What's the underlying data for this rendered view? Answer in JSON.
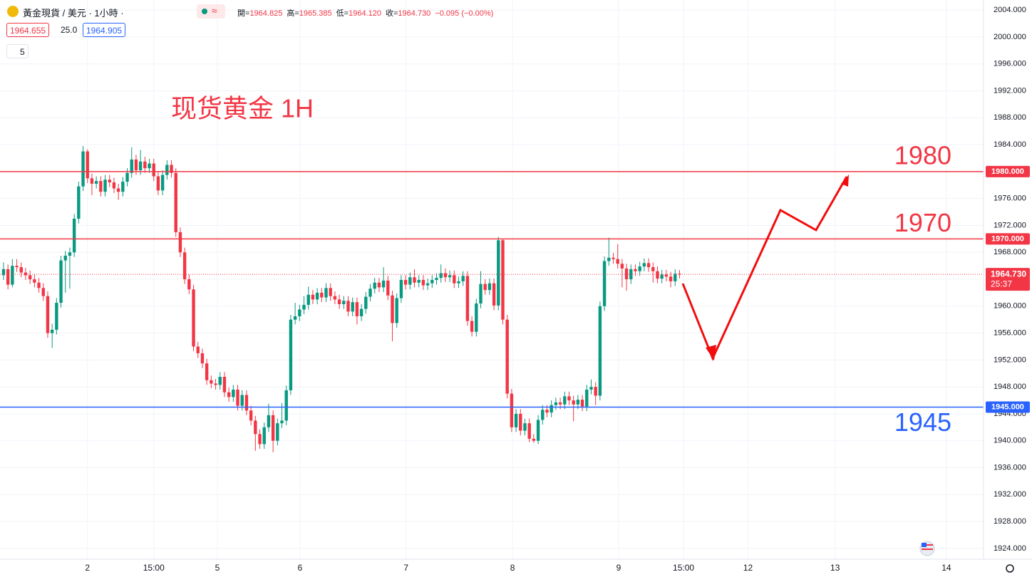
{
  "header": {
    "symbol": "黃金現貨 / 美元 · 1小時 ·",
    "ohlc": [
      {
        "key": "開=",
        "value": "1964.825"
      },
      {
        "key": "高=",
        "value": "1965.385"
      },
      {
        "key": "低=",
        "value": "1964.120"
      },
      {
        "key": "收=",
        "value": "1964.730"
      }
    ],
    "change": "−0.095 (−0.00%)",
    "bid": "1964.655",
    "spread": "25.0",
    "ask": "1964.905",
    "indicators": "5"
  },
  "chart_data": {
    "type": "candlestick",
    "title": "现货黄金 1H",
    "up_color": "#089981",
    "down_color": "#f23645",
    "open": [
      1964.6,
      1965.5,
      1963.2,
      1966,
      1965.8,
      1965,
      1964.6,
      1964,
      1963.5,
      1962.7,
      1961.5,
      1956,
      1956.5,
      1960.5,
      1966.8,
      1967.5,
      1968,
      1973,
      1977.8,
      1983,
      1979,
      1978.2,
      1978.6,
      1977,
      1978.8,
      1978.4,
      1977.5,
      1977,
      1978.5,
      1979.8,
      1981.8,
      1980.2,
      1981.5,
      1980.5,
      1981.2,
      1979.3,
      1977.2,
      1979.5,
      1981,
      1979.8,
      1971,
      1968,
      1964,
      1962.5,
      1954,
      1953,
      1951.5,
      1949,
      1948.5,
      1948.3,
      1949.5,
      1947.2,
      1946.5,
      1947.6,
      1945.2,
      1946.8,
      1944.5,
      1943,
      1941,
      1939.5,
      1942,
      1943.8,
      1940,
      1942.6,
      1943,
      1947.5,
      1958,
      1958.5,
      1959.5,
      1960.2,
      1961.7,
      1961,
      1962,
      1961.3,
      1962.7,
      1961.5,
      1961,
      1960.3,
      1960.8,
      1959.2,
      1960.6,
      1958.5,
      1959.6,
      1961.4,
      1962.6,
      1963.5,
      1962.8,
      1963.8,
      1961.6,
      1957.5,
      1961.2,
      1963.9,
      1963.2,
      1964.3,
      1963.5,
      1963.9,
      1963.1,
      1963.4,
      1963.9,
      1964.2,
      1964.9,
      1964.3,
      1964.6,
      1963.4,
      1963.7,
      1964.5,
      1957.8,
      1956.2,
      1960.4,
      1963.3,
      1962.4,
      1963.4,
      1960.1,
      1969.8,
      1958,
      1947,
      1942,
      1944,
      1941.5,
      1942.6,
      1940.3,
      1940,
      1943.1,
      1944.6,
      1944.2,
      1945.3,
      1945.7,
      1945.4,
      1946.6,
      1946,
      1945.4,
      1946.1,
      1945.1,
      1947.6,
      1948,
      1946.7,
      1960,
      1966.7,
      1967.2,
      1967,
      1966.3,
      1965.6,
      1964,
      1965.5,
      1965.2,
      1965.9,
      1966.4,
      1965.8,
      1965.2,
      1964.1,
      1964.7,
      1964.4,
      1963.7,
      1964.825
    ],
    "high": [
      1966.5,
      1966.2,
      1967,
      1967,
      1966.5,
      1965.7,
      1965.3,
      1964.7,
      1964.2,
      1963.4,
      1962.2,
      1957.4,
      1961.2,
      1967.5,
      1968.2,
      1968.7,
      1973.7,
      1978.5,
      1983.8,
      1983.3,
      1979.7,
      1979.3,
      1979.3,
      1979.5,
      1979.5,
      1979.1,
      1978.2,
      1979.2,
      1980.5,
      1983.6,
      1982.5,
      1983.2,
      1982.2,
      1981.9,
      1981.9,
      1980,
      1980.2,
      1981.7,
      1981.7,
      1980.5,
      1971.7,
      1968.7,
      1964.7,
      1963.2,
      1954.7,
      1953.7,
      1952.2,
      1949.7,
      1949.2,
      1950.2,
      1950.2,
      1947.9,
      1948.3,
      1948.3,
      1947.5,
      1947.5,
      1945.2,
      1943.7,
      1941.7,
      1942.7,
      1945.5,
      1944.5,
      1943.3,
      1945.6,
      1948.2,
      1958.7,
      1960.5,
      1960.2,
      1961.5,
      1962.9,
      1962.4,
      1962.7,
      1962.7,
      1963.4,
      1963.4,
      1962.2,
      1961.7,
      1961.5,
      1961.5,
      1961.3,
      1961.3,
      1960.3,
      1962.1,
      1963.3,
      1964.2,
      1964.2,
      1965.8,
      1964.5,
      1962.3,
      1961.9,
      1964.6,
      1964.6,
      1965,
      1965.5,
      1964.6,
      1964.6,
      1964.1,
      1964.6,
      1964.9,
      1966.2,
      1965.6,
      1965.3,
      1965.3,
      1964.4,
      1965.2,
      1965.2,
      1958.5,
      1961.1,
      1965.2,
      1964,
      1964.1,
      1964.1,
      1970.3,
      1970,
      1958.7,
      1947.7,
      1944.7,
      1944.7,
      1943.3,
      1943.3,
      1941,
      1943.8,
      1945.3,
      1945.3,
      1946,
      1946.4,
      1946.4,
      1947.3,
      1947.3,
      1946.7,
      1946.8,
      1946.8,
      1948.3,
      1949.1,
      1948.7,
      1960.7,
      1967.4,
      1970.2,
      1967.9,
      1969.2,
      1967,
      1966.3,
      1966.2,
      1966.2,
      1966.6,
      1967.1,
      1967.1,
      1966.5,
      1965.9,
      1965.4,
      1965.4,
      1965.1,
      1965.5,
      1965.385
    ],
    "low": [
      1963.9,
      1962.5,
      1962.8,
      1965.1,
      1964.3,
      1963.9,
      1963.3,
      1962.8,
      1962,
      1960.8,
      1955.3,
      1953.8,
      1955.8,
      1959.8,
      1962,
      1962.6,
      1967.3,
      1972.3,
      1977.1,
      1978.3,
      1976.5,
      1977.5,
      1976.3,
      1976.3,
      1977.7,
      1976.8,
      1975.8,
      1976.3,
      1977.8,
      1979.1,
      1979.5,
      1979.5,
      1979.8,
      1979.8,
      1978.6,
      1976.5,
      1976.5,
      1978.8,
      1979.1,
      1970.3,
      1967.3,
      1963.3,
      1961.8,
      1953.3,
      1952.3,
      1950.8,
      1948.3,
      1947.8,
      1947.6,
      1947.6,
      1946.5,
      1945.8,
      1945.8,
      1944.5,
      1944.5,
      1943.8,
      1942.3,
      1938.5,
      1938.8,
      1938.8,
      1941.3,
      1938.3,
      1939.3,
      1941.9,
      1942.3,
      1946.8,
      1957.3,
      1957.8,
      1958.8,
      1959.5,
      1960.3,
      1960.3,
      1960.6,
      1960.6,
      1960.8,
      1960.3,
      1959.6,
      1959.6,
      1958.5,
      1958.5,
      1957.3,
      1957.8,
      1958.9,
      1960.7,
      1961.9,
      1962.1,
      1962.1,
      1960.9,
      1954.8,
      1956.8,
      1960.5,
      1962.5,
      1962.5,
      1962.8,
      1962.8,
      1962.4,
      1962.4,
      1962.7,
      1963.2,
      1963.5,
      1963.6,
      1963.6,
      1962.7,
      1962.7,
      1963,
      1957.1,
      1955.5,
      1955.5,
      1959.7,
      1961.7,
      1961.7,
      1959.4,
      1959.4,
      1957.3,
      1946.3,
      1941.3,
      1941.3,
      1940.8,
      1940.8,
      1939.8,
      1939.7,
      1939.5,
      1942.4,
      1943.5,
      1943.5,
      1944.6,
      1944.7,
      1944.7,
      1945.3,
      1942.9,
      1944.7,
      1944.4,
      1944.4,
      1946.9,
      1945.3,
      1946,
      1959.3,
      1966,
      1966.3,
      1965.6,
      1962.8,
      1962.3,
      1963.3,
      1964.5,
      1964.5,
      1965.2,
      1965.1,
      1963.5,
      1963.4,
      1963.4,
      1963.7,
      1962.8,
      1963,
      1964.12
    ],
    "close": [
      1965.5,
      1963.2,
      1966,
      1965.8,
      1965,
      1964.6,
      1964,
      1963.5,
      1962.7,
      1961.5,
      1956,
      1956.5,
      1960.5,
      1966.8,
      1967.5,
      1968,
      1973,
      1977.8,
      1983,
      1979,
      1978.2,
      1978.6,
      1977,
      1978.8,
      1978.4,
      1977.5,
      1977,
      1978.5,
      1979.8,
      1981.8,
      1980.2,
      1981.5,
      1980.5,
      1981.2,
      1979.3,
      1977.2,
      1979.5,
      1981,
      1979.8,
      1971,
      1968,
      1964,
      1962.5,
      1954,
      1953,
      1951.5,
      1949,
      1948.5,
      1948.3,
      1949.5,
      1947.2,
      1946.5,
      1947.6,
      1945.2,
      1946.8,
      1944.5,
      1943,
      1941,
      1939.5,
      1942,
      1943.8,
      1940,
      1942.6,
      1943,
      1947.5,
      1958,
      1958.5,
      1959.5,
      1960.2,
      1961.7,
      1961,
      1962,
      1961.3,
      1962.7,
      1961.5,
      1961,
      1960.3,
      1960.8,
      1959.2,
      1960.6,
      1958.5,
      1959.6,
      1961.4,
      1962.6,
      1963.5,
      1962.8,
      1963.8,
      1961.6,
      1957.5,
      1961.2,
      1963.9,
      1963.2,
      1964.3,
      1963.5,
      1963.9,
      1963.1,
      1963.4,
      1963.9,
      1964.2,
      1964.9,
      1964.3,
      1964.6,
      1963.4,
      1963.7,
      1964.5,
      1957.8,
      1956.2,
      1960.4,
      1963.3,
      1962.4,
      1963.4,
      1960.1,
      1969.8,
      1958,
      1947,
      1942,
      1944,
      1941.5,
      1942.6,
      1940.3,
      1940,
      1943.1,
      1944.6,
      1944.2,
      1945.3,
      1945.7,
      1945.4,
      1946.6,
      1946,
      1945.4,
      1946.1,
      1945.1,
      1947.6,
      1948,
      1946.7,
      1960,
      1966.7,
      1967.2,
      1967,
      1966.3,
      1965.6,
      1964,
      1965.5,
      1965.2,
      1965.9,
      1966.4,
      1965.8,
      1965.2,
      1964.1,
      1964.7,
      1964.4,
      1963.7,
      1964.825,
      1964.73
    ],
    "xlim": [
      -0.8,
      221.8
    ],
    "xticks": [
      {
        "value": 19,
        "label": "2"
      },
      {
        "value": 34,
        "label": "15:00"
      },
      {
        "value": 48.4,
        "label": "5"
      },
      {
        "value": 67.1,
        "label": "6"
      },
      {
        "value": 91.1,
        "label": "7"
      },
      {
        "value": 115.2,
        "label": "8"
      },
      {
        "value": 139.2,
        "label": "9"
      },
      {
        "value": 153.9,
        "label": "15:00"
      },
      {
        "value": 168.5,
        "label": "12"
      },
      {
        "value": 188.2,
        "label": "13"
      },
      {
        "value": 213.4,
        "label": "14"
      }
    ],
    "ylim": [
      1922.4,
      2005.5
    ],
    "yticks": [
      {
        "value": 1924,
        "label": "1924.000"
      },
      {
        "value": 1928,
        "label": "1928.000"
      },
      {
        "value": 1932,
        "label": "1932.000"
      },
      {
        "value": 1936,
        "label": "1936.000"
      },
      {
        "value": 1940,
        "label": "1940.000"
      },
      {
        "value": 1944,
        "label": "1944.000"
      },
      {
        "value": 1948,
        "label": "1948.000"
      },
      {
        "value": 1952,
        "label": "1952.000"
      },
      {
        "value": 1956,
        "label": "1956.000"
      },
      {
        "value": 1960,
        "label": "1960.000"
      },
      {
        "value": 1964,
        "label": "1964.000"
      },
      {
        "value": 1968,
        "label": "1968.000"
      },
      {
        "value": 1972,
        "label": "1972.000"
      },
      {
        "value": 1976,
        "label": "1976.000"
      },
      {
        "value": 1980,
        "label": "1980.000"
      },
      {
        "value": 1984,
        "label": "1984.000"
      },
      {
        "value": 1988,
        "label": "1988.000"
      },
      {
        "value": 1992,
        "label": "1992.000"
      },
      {
        "value": 1996,
        "label": "1996.000"
      },
      {
        "value": 2000,
        "label": "2000.000"
      },
      {
        "value": 2004,
        "label": "2004.000"
      }
    ],
    "grid": true,
    "hlines": [
      {
        "value": 1980,
        "label": "1980.000",
        "annotation": "1980",
        "color": "#f23645"
      },
      {
        "value": 1970,
        "label": "1970.000",
        "annotation": "1970",
        "color": "#f23645"
      },
      {
        "value": 1945,
        "label": "1945.000",
        "annotation": "1945",
        "color": "#2962ff"
      }
    ],
    "last": {
      "value": 1964.73,
      "label": "1964.730",
      "countdown": "25:37",
      "color": "#f23645"
    }
  }
}
